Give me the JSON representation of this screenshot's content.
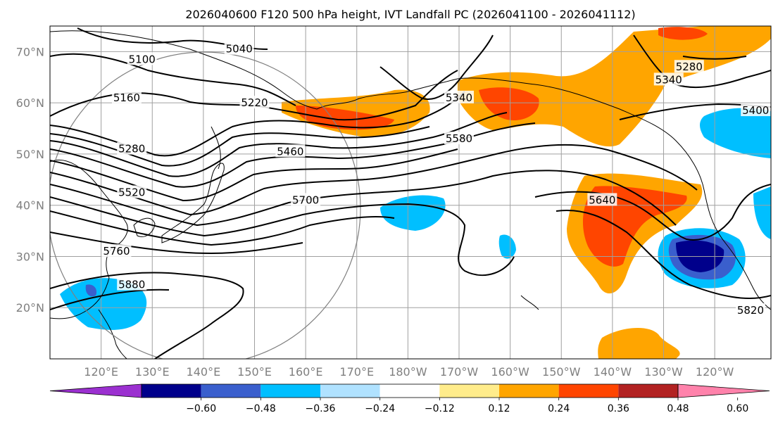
{
  "chart_data": {
    "type": "map",
    "title": "2026040600 F120 500 hPa height, IVT Landfall PC (2026041100 - 2026041112)",
    "lat_range": [
      10,
      75
    ],
    "lon_range": [
      110,
      251
    ],
    "lat_ticks": [
      {
        "value": 20,
        "label": "20°N"
      },
      {
        "value": 30,
        "label": "30°N"
      },
      {
        "value": 40,
        "label": "40°N"
      },
      {
        "value": 50,
        "label": "50°N"
      },
      {
        "value": 60,
        "label": "60°N"
      },
      {
        "value": 70,
        "label": "70°N"
      }
    ],
    "lon_ticks": [
      {
        "value": 120,
        "label": "120°E"
      },
      {
        "value": 130,
        "label": "130°E"
      },
      {
        "value": 140,
        "label": "140°E"
      },
      {
        "value": 150,
        "label": "150°E"
      },
      {
        "value": 160,
        "label": "160°E"
      },
      {
        "value": 170,
        "label": "170°E"
      },
      {
        "value": 180,
        "label": "180°W"
      },
      {
        "value": 190,
        "label": "170°W"
      },
      {
        "value": 200,
        "label": "160°W"
      },
      {
        "value": 210,
        "label": "150°W"
      },
      {
        "value": 220,
        "label": "140°W"
      },
      {
        "value": 230,
        "label": "130°W"
      },
      {
        "value": 240,
        "label": "120°W"
      }
    ],
    "height_contour_labels": [
      {
        "text": "5040",
        "lon": 147,
        "lat": 70.5
      },
      {
        "text": "5100",
        "lon": 128,
        "lat": 68.5
      },
      {
        "text": "5160",
        "lon": 125,
        "lat": 61
      },
      {
        "text": "5220",
        "lon": 150,
        "lat": 60
      },
      {
        "text": "5280",
        "lon": 126,
        "lat": 51
      },
      {
        "text": "5340",
        "lon": 190,
        "lat": 61
      },
      {
        "text": "5340",
        "lon": 231,
        "lat": 64.5
      },
      {
        "text": "5280",
        "lon": 235,
        "lat": 67
      },
      {
        "text": "5400",
        "lon": 248,
        "lat": 58.5
      },
      {
        "text": "5460",
        "lon": 157,
        "lat": 50.5
      },
      {
        "text": "5520",
        "lon": 126,
        "lat": 42.5
      },
      {
        "text": "5580",
        "lon": 190,
        "lat": 53
      },
      {
        "text": "5640",
        "lon": 218,
        "lat": 41
      },
      {
        "text": "5700",
        "lon": 160,
        "lat": 41
      },
      {
        "text": "5760",
        "lon": 123,
        "lat": 31
      },
      {
        "text": "5820",
        "lon": 247,
        "lat": 19.5
      },
      {
        "text": "5880",
        "lon": 126,
        "lat": 24.5
      }
    ],
    "colorbar": {
      "ticks": [
        "−0.60",
        "−0.48",
        "−0.36",
        "−0.24",
        "−0.12",
        "0.12",
        "0.24",
        "0.36",
        "0.48",
        "0.60"
      ],
      "colors": [
        "#9b30d0",
        "#00008b",
        "#3a5fcd",
        "#00bfff",
        "#b0e2ff",
        "#ffffff",
        "#ffec8b",
        "#ffa500",
        "#ff4500",
        "#b22222",
        "#ff82ab"
      ]
    }
  }
}
